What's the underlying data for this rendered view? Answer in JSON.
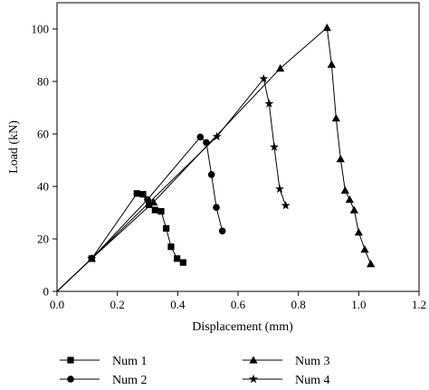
{
  "chart_data": {
    "type": "line",
    "title": "",
    "xlabel": "Displacement (mm)",
    "ylabel": "Load (kN)",
    "xlim": [
      0,
      1.2
    ],
    "ylim": [
      0,
      110
    ],
    "xticks": [
      0,
      0.2,
      0.4,
      0.6,
      0.8,
      1.0,
      1.2
    ],
    "xtick_labels": [
      "0.0",
      "0.2",
      "0.4",
      "0.6",
      "0.8",
      "1.0",
      "1.2"
    ],
    "yticks": [
      0,
      20,
      40,
      60,
      80,
      100
    ],
    "ytick_labels": [
      "0",
      "20",
      "40",
      "60",
      "80",
      "100"
    ],
    "grid": false,
    "legend_position": "bottom",
    "series": [
      {
        "name": "Num 1",
        "marker": "square",
        "x": [
          0,
          0.115,
          0.265,
          0.285,
          0.305,
          0.325,
          0.345,
          0.362,
          0.378,
          0.398,
          0.418
        ],
        "y": [
          0,
          12.5,
          37.3,
          37.0,
          33.0,
          31.0,
          30.5,
          24.0,
          17.0,
          12.5,
          11.0
        ]
      },
      {
        "name": "Num 2",
        "marker": "circle",
        "x": [
          0,
          0.115,
          0.3,
          0.475,
          0.495,
          0.512,
          0.528,
          0.548
        ],
        "y": [
          0,
          12.5,
          35.0,
          58.8,
          56.7,
          44.5,
          32.0,
          23.0
        ]
      },
      {
        "name": "Num 3",
        "marker": "triangle",
        "x": [
          0,
          0.115,
          0.32,
          0.74,
          0.895,
          0.91,
          0.925,
          0.94,
          0.955,
          0.97,
          0.985,
          1.0,
          1.02,
          1.04
        ],
        "y": [
          0,
          12.5,
          34.0,
          85.0,
          100.5,
          86.5,
          66.0,
          50.5,
          38.5,
          35.0,
          31.0,
          22.5,
          16.0,
          10.5
        ]
      },
      {
        "name": "Num 4",
        "marker": "star",
        "x": [
          0,
          0.115,
          0.53,
          0.685,
          0.703,
          0.72,
          0.738,
          0.758
        ],
        "y": [
          0,
          12.5,
          59.0,
          81.0,
          71.5,
          55.0,
          39.0,
          32.7
        ]
      }
    ]
  }
}
